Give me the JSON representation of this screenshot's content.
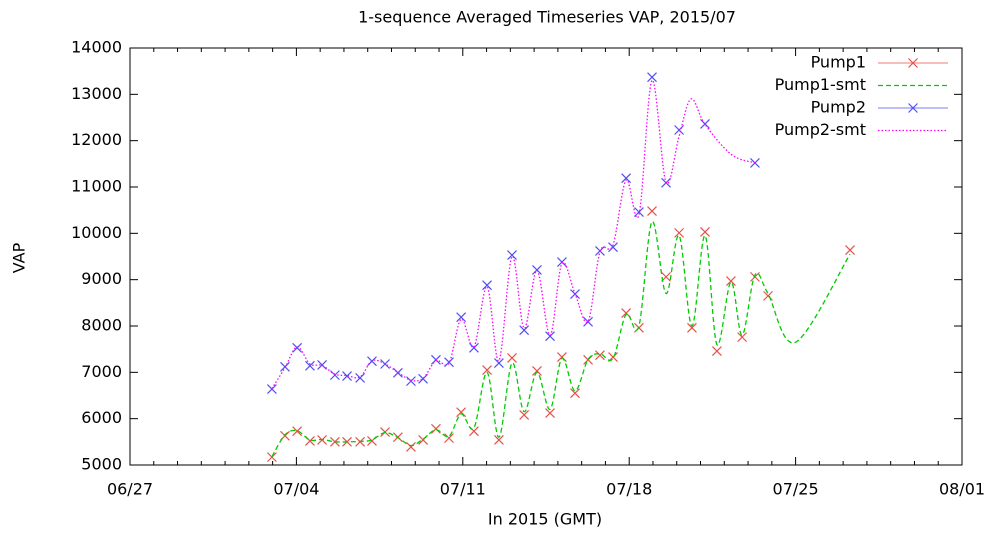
{
  "chart_data": {
    "type": "line",
    "title": "1-sequence Averaged Timeseries VAP, 2015/07",
    "x_label": "In 2015 (GMT)",
    "y_label": "VAP",
    "xlim": [
      -3,
      32
    ],
    "xticks": [
      {
        "value": -3,
        "label": "06/27"
      },
      {
        "value": 4,
        "label": "07/04"
      },
      {
        "value": 11,
        "label": "07/11"
      },
      {
        "value": 18,
        "label": "07/18"
      },
      {
        "value": 25,
        "label": "07/25"
      },
      {
        "value": 32,
        "label": "08/01"
      }
    ],
    "ylim": [
      5000,
      14000
    ],
    "yticks": [
      5000,
      6000,
      7000,
      8000,
      9000,
      10000,
      11000,
      12000,
      13000,
      14000
    ],
    "legend": "top-right",
    "series": [
      {
        "name": "Pump1",
        "color": "#e8504a",
        "style": "points",
        "x": [
          2.97,
          3.52,
          4.03,
          4.57,
          5.08,
          5.62,
          6.13,
          6.68,
          7.18,
          7.73,
          8.27,
          8.82,
          9.33,
          9.87,
          10.42,
          10.93,
          11.47,
          12.02,
          12.52,
          13.07,
          13.58,
          14.12,
          14.67,
          15.17,
          15.72,
          16.27,
          16.77,
          17.32,
          17.87,
          18.41,
          18.96,
          19.55,
          20.1,
          20.64,
          21.19,
          21.69,
          22.28,
          22.75,
          23.29,
          23.84,
          27.29
        ],
        "values": [
          5170,
          5630,
          5730,
          5520,
          5540,
          5500,
          5500,
          5500,
          5520,
          5710,
          5600,
          5390,
          5540,
          5780,
          5580,
          6140,
          5730,
          7050,
          5540,
          7310,
          6080,
          7030,
          6120,
          7330,
          6550,
          7270,
          7370,
          7330,
          8280,
          7960,
          10480,
          9060,
          10010,
          7960,
          10030,
          7460,
          8970,
          7760,
          9060,
          8650,
          9640
        ]
      },
      {
        "name": "Pump1-smt",
        "color": "#00cc00",
        "style": "dashed",
        "x": [
          2.97,
          3.52,
          4.03,
          4.57,
          5.08,
          5.62,
          6.13,
          6.68,
          7.18,
          7.73,
          8.27,
          8.82,
          9.33,
          9.87,
          10.42,
          10.93,
          11.47,
          12.02,
          12.52,
          13.07,
          13.58,
          14.12,
          14.67,
          15.17,
          15.72,
          16.27,
          16.77,
          17.32,
          17.87,
          18.41,
          18.96,
          19.55,
          20.1,
          20.64,
          21.19,
          21.69,
          22.28,
          22.75,
          23.29,
          23.84,
          25,
          27.29
        ],
        "values": [
          5180,
          5650,
          5740,
          5540,
          5550,
          5500,
          5500,
          5510,
          5540,
          5700,
          5590,
          5420,
          5560,
          5760,
          5620,
          6100,
          5800,
          7000,
          5600,
          7200,
          6150,
          7000,
          6200,
          7300,
          6600,
          7280,
          7400,
          7300,
          8250,
          8000,
          10250,
          8700,
          9950,
          8000,
          9950,
          7600,
          8950,
          7800,
          9100,
          8700,
          7650,
          9550
        ]
      },
      {
        "name": "Pump2",
        "color": "#5050f0",
        "style": "points",
        "x": [
          2.97,
          3.52,
          4.03,
          4.57,
          5.08,
          5.62,
          6.13,
          6.68,
          7.18,
          7.73,
          8.27,
          8.82,
          9.33,
          9.87,
          10.42,
          10.93,
          11.47,
          12.02,
          12.52,
          13.07,
          13.58,
          14.12,
          14.67,
          15.17,
          15.72,
          16.27,
          16.77,
          17.32,
          17.87,
          18.41,
          18.96,
          19.55,
          20.1,
          21.19,
          23.29
        ],
        "values": [
          6640,
          7120,
          7530,
          7140,
          7160,
          6940,
          6920,
          6880,
          7240,
          7180,
          6990,
          6810,
          6860,
          7270,
          7220,
          8190,
          7530,
          8880,
          7200,
          9530,
          7910,
          9210,
          7780,
          9380,
          8690,
          8090,
          9620,
          9700,
          11190,
          10460,
          13370,
          11090,
          12230,
          12360,
          11520
        ]
      },
      {
        "name": "Pump2-smt",
        "color": "#ff00ff",
        "style": "dotted",
        "x": [
          2.97,
          3.52,
          4.03,
          4.57,
          5.08,
          5.62,
          6.13,
          6.68,
          7.18,
          7.73,
          8.27,
          8.82,
          9.33,
          9.87,
          10.42,
          10.93,
          11.47,
          12.02,
          12.52,
          13.07,
          13.58,
          14.12,
          14.67,
          15.17,
          15.72,
          16.27,
          16.77,
          17.32,
          17.87,
          18.41,
          18.96,
          19.55,
          20.1,
          20.6,
          21.19,
          22.3,
          23.29
        ],
        "values": [
          6650,
          7100,
          7550,
          7180,
          7150,
          6960,
          6930,
          6900,
          7250,
          7180,
          7000,
          6830,
          6870,
          7250,
          7200,
          8150,
          7550,
          8850,
          7250,
          9500,
          7950,
          9200,
          7800,
          9350,
          8700,
          8100,
          9600,
          9750,
          11150,
          10400,
          13300,
          11100,
          12100,
          12900,
          12350,
          11700,
          11520
        ]
      }
    ]
  }
}
